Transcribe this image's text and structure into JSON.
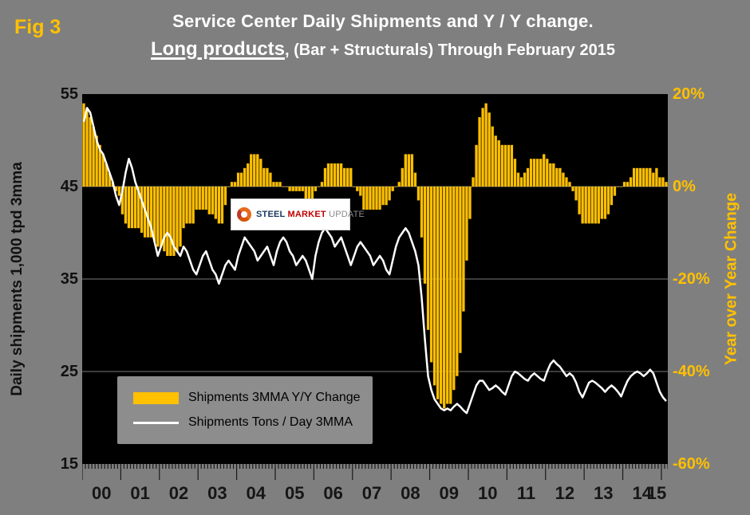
{
  "figure": {
    "fig_label": "Fig 3",
    "title_line1": "Service Center Daily Shipments and Y / Y change.",
    "title_line2_emph": "Long products",
    "title_line2_rest": ", (Bar + Structurals) Through February 2015"
  },
  "logo": {
    "word1": "STEEL",
    "word2": "MARKET",
    "word3": "UPDATE"
  },
  "legend": {
    "bar_label": "Shipments 3MMA Y/Y Change",
    "line_label": "Shipments Tons / Day 3MMA"
  },
  "colors": {
    "background": "#7F7F7F",
    "plot_background": "#000000",
    "bar": "#FFC000",
    "line": "#FFFFFF",
    "right_axis_text": "#FFC000",
    "left_axis_text": "#111111",
    "title_text": "#FFFFFF",
    "fig_label_text": "#FFC000",
    "gridline": "#777777"
  },
  "chart_data": {
    "type": "bar+line",
    "period": "monthly, Jan 2000 through Feb 2015",
    "left_axis": {
      "title": "Daily shipments 1,000 tpd 3mma",
      "tick_labels": [
        "55",
        "45",
        "35",
        "25",
        "15"
      ],
      "range": [
        15,
        55
      ]
    },
    "right_axis": {
      "title": "Year over Year Change",
      "tick_labels": [
        "20%",
        "0%",
        "-20%",
        "-40%",
        "-60%"
      ],
      "range": [
        -60,
        20
      ]
    },
    "x_axis": {
      "year_labels": [
        "00",
        "01",
        "02",
        "03",
        "04",
        "05",
        "06",
        "07",
        "08",
        "09",
        "10",
        "11",
        "12",
        "13",
        "14",
        "15"
      ],
      "months_per_year": 12,
      "n_points": 182
    },
    "gridlines_right_values": [
      0,
      -20,
      -40
    ],
    "series": [
      {
        "name": "Shipments 3MMA Y/Y Change",
        "type": "bar",
        "axis": "right",
        "unit": "percent",
        "color": "#FFC000",
        "values": [
          18,
          17,
          15,
          13,
          11,
          9,
          7,
          5,
          3,
          1,
          -1,
          -2,
          -6,
          -8,
          -9,
          -9,
          -9,
          -9,
          -10,
          -11,
          -11,
          -11,
          -12,
          -13,
          -13,
          -14,
          -15,
          -15,
          -15,
          -14,
          -13,
          -9,
          -8,
          -8,
          -8,
          -5,
          -5,
          -5,
          -5,
          -6,
          -6,
          -7,
          -8,
          -8,
          -4,
          0,
          1,
          1,
          3,
          3,
          4,
          5,
          7,
          7,
          7,
          6,
          4,
          4,
          3,
          1,
          1,
          1,
          0,
          0,
          -1,
          -1,
          -1,
          -1,
          -1,
          -4,
          -4,
          -4,
          -1,
          0,
          1,
          4,
          5,
          5,
          5,
          5,
          5,
          4,
          4,
          4,
          0,
          -1,
          -2,
          -5,
          -5,
          -5,
          -5,
          -5,
          -5,
          -4,
          -4,
          -3,
          -1,
          0,
          1,
          4,
          7,
          7,
          7,
          3,
          -3,
          -11,
          -21,
          -31,
          -38,
          -43,
          -46,
          -47,
          -48,
          -47,
          -47,
          -44,
          -41,
          -36,
          -27,
          -16,
          -7,
          2,
          9,
          15,
          17,
          18,
          16,
          13,
          11,
          10,
          9,
          9,
          9,
          9,
          6,
          3,
          2,
          3,
          4,
          6,
          6,
          6,
          6,
          7,
          6,
          5,
          5,
          4,
          4,
          3,
          2,
          1,
          -1,
          -3,
          -6,
          -8,
          -8,
          -8,
          -8,
          -8,
          -8,
          -7,
          -7,
          -6,
          -4,
          -2,
          0,
          0,
          1,
          1,
          2,
          4,
          4,
          4,
          4,
          4,
          4,
          3,
          4,
          2,
          2,
          1
        ]
      },
      {
        "name": "Shipments Tons / Day 3MMA",
        "type": "line",
        "axis": "left",
        "unit": "1,000 tons per day",
        "color": "#FFFFFF",
        "values": [
          52.0,
          53.5,
          53.0,
          51.5,
          50.0,
          49.0,
          48.5,
          47.5,
          46.5,
          45.5,
          44.0,
          43.0,
          44.5,
          46.5,
          48.0,
          47.0,
          45.5,
          44.5,
          43.5,
          42.5,
          41.5,
          40.5,
          39.0,
          37.5,
          38.5,
          39.5,
          40.0,
          39.5,
          38.5,
          38.0,
          37.5,
          38.5,
          38.0,
          37.0,
          36.0,
          35.5,
          36.5,
          37.5,
          38.0,
          37.0,
          36.0,
          35.5,
          34.5,
          35.5,
          36.5,
          37.0,
          36.5,
          36.0,
          37.5,
          38.5,
          39.5,
          39.0,
          38.5,
          38.0,
          37.0,
          37.5,
          38.0,
          38.5,
          37.5,
          36.5,
          38.0,
          39.0,
          39.5,
          39.0,
          38.0,
          37.5,
          36.5,
          37.0,
          37.5,
          37.0,
          36.0,
          35.0,
          37.5,
          39.0,
          40.0,
          40.5,
          40.0,
          39.5,
          38.5,
          39.0,
          39.5,
          38.5,
          37.5,
          36.5,
          37.5,
          38.5,
          39.0,
          38.5,
          38.0,
          37.5,
          36.5,
          37.0,
          37.5,
          37.0,
          36.0,
          35.5,
          37.0,
          38.5,
          39.5,
          40.0,
          40.5,
          40.0,
          39.0,
          38.0,
          36.5,
          33.0,
          28.5,
          24.5,
          23.0,
          22.0,
          21.5,
          21.0,
          20.8,
          21.0,
          20.8,
          21.2,
          21.5,
          21.2,
          20.8,
          20.5,
          21.5,
          22.5,
          23.5,
          24.0,
          24.0,
          23.5,
          23.0,
          23.2,
          23.5,
          23.2,
          22.8,
          22.5,
          23.5,
          24.5,
          25.0,
          24.8,
          24.5,
          24.2,
          24.0,
          24.5,
          24.8,
          24.5,
          24.2,
          24.0,
          25.0,
          25.8,
          26.2,
          25.8,
          25.5,
          25.0,
          24.5,
          24.8,
          24.5,
          23.8,
          22.8,
          22.2,
          23.0,
          23.8,
          24.0,
          23.8,
          23.5,
          23.2,
          22.8,
          23.2,
          23.5,
          23.2,
          22.8,
          22.3,
          23.2,
          24.0,
          24.5,
          24.8,
          25.0,
          24.8,
          24.5,
          24.8,
          25.2,
          24.8,
          23.8,
          22.8,
          22.2,
          21.8
        ]
      }
    ]
  }
}
